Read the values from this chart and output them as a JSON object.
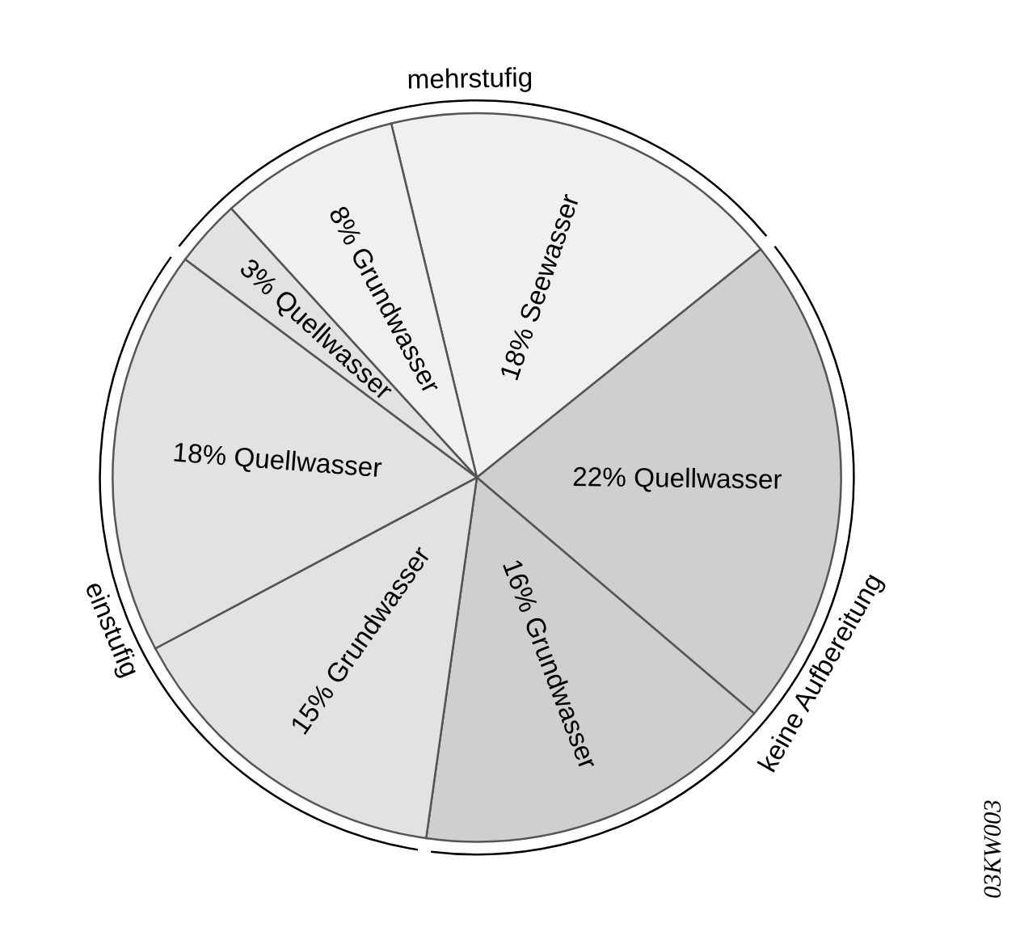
{
  "chart_data": {
    "type": "pie",
    "categories": [
      "18% Seewasser",
      "22% Quellwasser",
      "16% Grundwasser",
      "15% Grundwasser",
      "18% Quellwasser",
      "3% Quellwasser",
      "8% Grundwasser"
    ],
    "values": [
      18,
      22,
      16,
      15,
      18,
      3,
      8
    ],
    "colors": [
      "#f0f0f0",
      "#cfcfcf",
      "#cfcfcf",
      "#e2e2e2",
      "#e2e2e2",
      "#e2e2e2",
      "#f0f0f0"
    ],
    "annotations": [
      "mehrstufig",
      "keine Aufbereitung",
      "einstufig",
      "03KW003"
    ]
  }
}
